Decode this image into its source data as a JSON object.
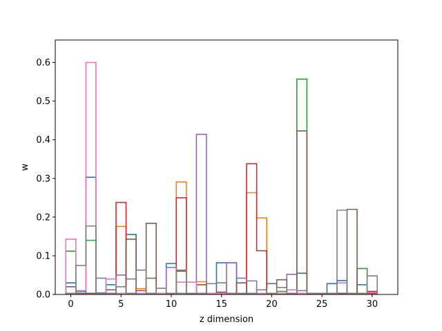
{
  "chart_data": {
    "type": "bar",
    "style": "step-histogram",
    "xlabel": "z dimension",
    "ylabel": "w",
    "xlim": [
      -1.55,
      32.55
    ],
    "ylim": [
      0,
      0.658
    ],
    "xticks": [
      0,
      5,
      10,
      15,
      20,
      25,
      30
    ],
    "yticks": [
      0.0,
      0.1,
      0.2,
      0.3,
      0.4,
      0.5,
      0.6
    ],
    "grid": false,
    "bin_width": 1,
    "x_start": 0,
    "series": [
      {
        "color": "#1f77b4",
        "values": [
          0.03,
          0.008,
          0.303,
          0.004,
          0.025,
          0.003,
          0.155,
          0.003,
          0.003,
          0.003,
          0.08,
          0.003,
          0.003,
          0.003,
          0.003,
          0.082,
          0.082,
          0.003,
          0.003,
          0.003,
          0.028,
          0.003,
          0.003,
          0.055,
          0.003,
          0.003,
          0.028,
          0.036,
          0.003,
          0.025,
          0.003
        ]
      },
      {
        "color": "#ff7f0e",
        "values": [
          0.003,
          0.003,
          0.003,
          0.003,
          0.003,
          0.176,
          0.003,
          0.015,
          0.003,
          0.003,
          0.003,
          0.291,
          0.003,
          0.033,
          0.003,
          0.003,
          0.003,
          0.003,
          0.263,
          0.198,
          0.003,
          0.003,
          0.003,
          0.003,
          0.003,
          0.003,
          0.003,
          0.003,
          0.003,
          0.003,
          0.003
        ]
      },
      {
        "color": "#2ca02c",
        "values": [
          0.112,
          0.003,
          0.14,
          0.003,
          0.003,
          0.003,
          0.003,
          0.003,
          0.042,
          0.003,
          0.003,
          0.003,
          0.003,
          0.003,
          0.003,
          0.003,
          0.003,
          0.003,
          0.003,
          0.003,
          0.003,
          0.008,
          0.003,
          0.557,
          0.003,
          0.003,
          0.003,
          0.003,
          0.003,
          0.067,
          0.003
        ]
      },
      {
        "color": "#d62728",
        "values": [
          0.003,
          0.003,
          0.003,
          0.003,
          0.003,
          0.238,
          0.003,
          0.003,
          0.003,
          0.003,
          0.003,
          0.25,
          0.003,
          0.003,
          0.003,
          0.006,
          0.003,
          0.003,
          0.338,
          0.113,
          0.003,
          0.003,
          0.003,
          0.003,
          0.003,
          0.003,
          0.003,
          0.003,
          0.003,
          0.003,
          0.008
        ]
      },
      {
        "color": "#9467bd",
        "values": [
          0.003,
          0.003,
          0.003,
          0.042,
          0.003,
          0.05,
          0.04,
          0.003,
          0.003,
          0.003,
          0.07,
          0.003,
          0.003,
          0.414,
          0.003,
          0.003,
          0.082,
          0.042,
          0.035,
          0.003,
          0.003,
          0.003,
          0.052,
          0.003,
          0.003,
          0.003,
          0.003,
          0.003,
          0.003,
          0.003,
          0.003
        ]
      },
      {
        "color": "#8c564b",
        "values": [
          0.02,
          0.003,
          0.003,
          0.003,
          0.012,
          0.003,
          0.143,
          0.01,
          0.184,
          0.003,
          0.003,
          0.06,
          0.003,
          0.025,
          0.003,
          0.003,
          0.003,
          0.03,
          0.003,
          0.003,
          0.003,
          0.038,
          0.003,
          0.423,
          0.003,
          0.003,
          0.003,
          0.003,
          0.22,
          0.003,
          0.003
        ]
      },
      {
        "color": "#e377c2",
        "values": [
          0.143,
          0.01,
          0.6,
          0.003,
          0.04,
          0.003,
          0.003,
          0.003,
          0.003,
          0.003,
          0.003,
          0.032,
          0.032,
          0.003,
          0.003,
          0.003,
          0.003,
          0.003,
          0.003,
          0.003,
          0.003,
          0.003,
          0.012,
          0.003,
          0.003,
          0.003,
          0.003,
          0.03,
          0.003,
          0.003,
          0.005
        ]
      },
      {
        "color": "#7f7f7f",
        "values": [
          0.003,
          0.075,
          0.177,
          0.003,
          0.003,
          0.02,
          0.003,
          0.063,
          0.003,
          0.016,
          0.003,
          0.063,
          0.003,
          0.003,
          0.028,
          0.03,
          0.003,
          0.003,
          0.003,
          0.012,
          0.003,
          0.018,
          0.003,
          0.01,
          0.003,
          0.003,
          0.003,
          0.218,
          0.003,
          0.003,
          0.048
        ]
      }
    ]
  }
}
